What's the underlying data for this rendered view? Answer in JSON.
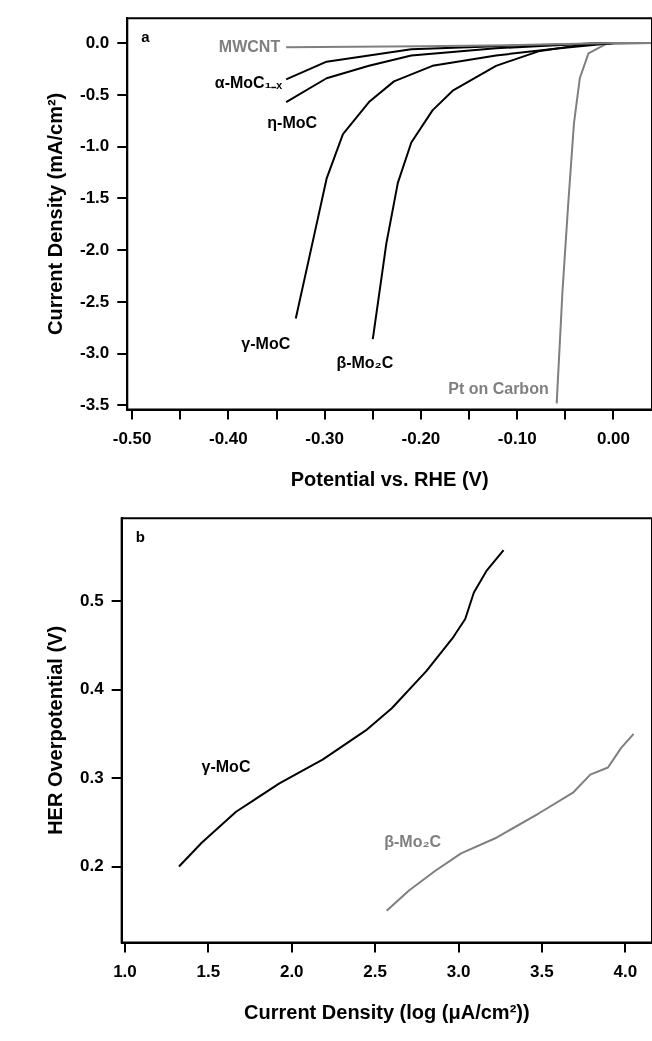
{
  "chart_data": [
    {
      "type": "line",
      "xlabel": "Potential vs. RHE (V)",
      "ylabel": "Current Density (mA/cm²)",
      "annotations": [
        "a"
      ],
      "xlim": [
        -0.505,
        0.04
      ],
      "ylim": [
        -3.54,
        0.24
      ],
      "xticks": [
        {
          "value": -0.5,
          "label": "-0.50"
        },
        {
          "value": -0.45,
          "label": null
        },
        {
          "value": -0.4,
          "label": "-0.40"
        },
        {
          "value": -0.35,
          "label": null
        },
        {
          "value": -0.3,
          "label": "-0.30"
        },
        {
          "value": -0.25,
          "label": null
        },
        {
          "value": -0.2,
          "label": "-0.20"
        },
        {
          "value": -0.15,
          "label": null
        },
        {
          "value": -0.1,
          "label": "-0.10"
        },
        {
          "value": -0.05,
          "label": null
        },
        {
          "value": 0,
          "label": "0.00"
        }
      ],
      "yticks": [
        {
          "value": 0,
          "label": "0.0"
        },
        {
          "value": -0.5,
          "label": "-0.5"
        },
        {
          "value": -1,
          "label": "-1.0"
        },
        {
          "value": -1.5,
          "label": "-1.5"
        },
        {
          "value": -2,
          "label": "-2.0"
        },
        {
          "value": -2.5,
          "label": "-2.5"
        },
        {
          "value": -3,
          "label": "-3.0"
        },
        {
          "value": -3.5,
          "label": "-3.5"
        }
      ],
      "series": [
        {
          "name": "MWCNT",
          "color": "#7f7f7f",
          "x": [
            -0.34,
            -0.2,
            -0.1,
            -0.05,
            0,
            0.04
          ],
          "values": [
            -0.04,
            -0.03,
            -0.02,
            -0.01,
            0,
            0
          ]
        },
        {
          "name": "α-MoC₁₋ₓ",
          "color": "#000000",
          "x": [
            -0.34,
            -0.298,
            -0.21,
            -0.122,
            -0.035,
            0,
            0.04
          ],
          "values": [
            -0.35,
            -0.18,
            -0.06,
            -0.03,
            -0.01,
            0,
            0
          ]
        },
        {
          "name": "η-MoC",
          "color": "#000000",
          "x": [
            -0.34,
            -0.298,
            -0.254,
            -0.21,
            -0.122,
            -0.035,
            0,
            0.04
          ],
          "values": [
            -0.57,
            -0.34,
            -0.22,
            -0.12,
            -0.05,
            -0.01,
            0,
            0
          ]
        },
        {
          "name": "γ-MoC",
          "color": "#000000",
          "x": [
            -0.33,
            -0.311,
            -0.298,
            -0.281,
            -0.254,
            -0.228,
            -0.188,
            -0.122,
            -0.056,
            0,
            0.04
          ],
          "values": [
            -2.66,
            -1.86,
            -1.31,
            -0.88,
            -0.57,
            -0.37,
            -0.22,
            -0.12,
            -0.05,
            0,
            0
          ]
        },
        {
          "name": "β-Mo₂C",
          "color": "#000000",
          "x": [
            -0.25,
            -0.236,
            -0.224,
            -0.21,
            -0.188,
            -0.167,
            -0.122,
            -0.078,
            -0.035,
            0,
            0.04
          ],
          "values": [
            -2.86,
            -1.94,
            -1.35,
            -0.96,
            -0.65,
            -0.46,
            -0.22,
            -0.08,
            -0.02,
            0,
            0
          ]
        },
        {
          "name": "Pt on Carbon",
          "color": "#7f7f7f",
          "x": [
            -0.059,
            -0.053,
            -0.047,
            -0.041,
            -0.035,
            -0.026,
            -0.008,
            0.04
          ],
          "values": [
            -3.48,
            -2.4,
            -1.55,
            -0.77,
            -0.34,
            -0.1,
            -0.01,
            0
          ]
        }
      ]
    },
    {
      "type": "line",
      "xlabel": "Current Density (log (μA/cm²))",
      "ylabel": "HER Overpotential (V)",
      "annotations": [
        "b"
      ],
      "xlim": [
        0.98,
        4.16
      ],
      "ylim": [
        0.114,
        0.594
      ],
      "xticks": [
        {
          "value": 1,
          "label": "1.0"
        },
        {
          "value": 1.5,
          "label": "1.5"
        },
        {
          "value": 2,
          "label": "2.0"
        },
        {
          "value": 2.5,
          "label": "2.5"
        },
        {
          "value": 3,
          "label": "3.0"
        },
        {
          "value": 3.5,
          "label": "3.5"
        },
        {
          "value": 4,
          "label": "4.0"
        }
      ],
      "yticks": [
        {
          "value": 0.2,
          "label": "0.2"
        },
        {
          "value": 0.3,
          "label": "0.3"
        },
        {
          "value": 0.4,
          "label": "0.4"
        },
        {
          "value": 0.5,
          "label": "0.5"
        }
      ],
      "series": [
        {
          "name": "γ-MoC",
          "color": "#000000",
          "x": [
            1.324,
            1.46,
            1.666,
            1.926,
            2.185,
            2.444,
            2.6,
            2.807,
            2.963,
            3.04,
            3.092,
            3.17,
            3.27
          ],
          "values": [
            0.2,
            0.227,
            0.262,
            0.294,
            0.321,
            0.354,
            0.379,
            0.421,
            0.458,
            0.48,
            0.51,
            0.535,
            0.558
          ]
        },
        {
          "name": "β-Mo₂C",
          "color": "#7f7f7f",
          "x": [
            2.569,
            2.703,
            2.859,
            3.015,
            3.22,
            3.48,
            3.689,
            3.79,
            3.896,
            3.974,
            4.05
          ],
          "values": [
            0.15,
            0.173,
            0.195,
            0.215,
            0.232,
            0.26,
            0.284,
            0.304,
            0.312,
            0.334,
            0.35
          ]
        }
      ]
    }
  ]
}
